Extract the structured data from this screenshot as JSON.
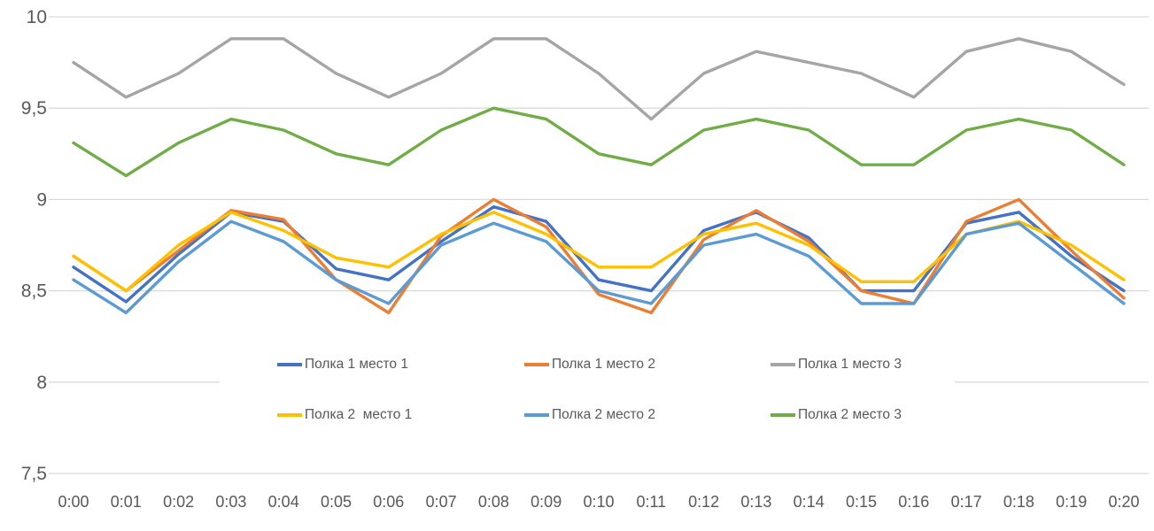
{
  "chart_data": {
    "type": "line",
    "title": "",
    "xlabel": "",
    "ylabel": "",
    "grid": true,
    "legend_position": "inside-bottom-two-rows",
    "ylim": [
      7.5,
      10
    ],
    "y_tick_values": [
      10,
      9.5,
      9,
      8.5,
      8,
      7.5
    ],
    "y_tick_labels": [
      "10",
      "9,5",
      "9",
      "8,5",
      "8",
      "7,5"
    ],
    "categories": [
      "0:00",
      "0:01",
      "0:02",
      "0:03",
      "0:04",
      "0:05",
      "0:06",
      "0:07",
      "0:08",
      "0:09",
      "0:10",
      "0:11",
      "0:12",
      "0:13",
      "0:14",
      "0:15",
      "0:16",
      "0:17",
      "0:18",
      "0:19",
      "0:20"
    ],
    "series": [
      {
        "name": "Полка 1 место 1",
        "color": "#4472C4",
        "values": [
          8.63,
          8.44,
          8.7,
          8.93,
          8.88,
          8.62,
          8.56,
          8.77,
          8.96,
          8.88,
          8.56,
          8.5,
          8.83,
          8.93,
          8.79,
          8.5,
          8.5,
          8.87,
          8.93,
          8.69,
          8.5
        ]
      },
      {
        "name": "Полка 1 место 2",
        "color": "#ED7D31",
        "values": [
          8.69,
          8.5,
          8.72,
          8.94,
          8.89,
          8.56,
          8.38,
          8.8,
          9.0,
          8.85,
          8.48,
          8.38,
          8.78,
          8.94,
          8.77,
          8.5,
          8.43,
          8.88,
          9.0,
          8.72,
          8.46
        ]
      },
      {
        "name": "Полка 1 место 3",
        "color": "#A5A5A5",
        "values": [
          9.75,
          9.56,
          9.69,
          9.88,
          9.88,
          9.69,
          9.56,
          9.69,
          9.88,
          9.88,
          9.69,
          9.44,
          9.69,
          9.81,
          9.75,
          9.69,
          9.56,
          9.81,
          9.88,
          9.81,
          9.63
        ]
      },
      {
        "name": "Полка 2  место 1",
        "color": "#FFC000",
        "values": [
          8.69,
          8.5,
          8.75,
          8.93,
          8.83,
          8.68,
          8.63,
          8.81,
          8.93,
          8.81,
          8.63,
          8.63,
          8.81,
          8.87,
          8.75,
          8.55,
          8.55,
          8.81,
          8.88,
          8.75,
          8.56
        ]
      },
      {
        "name": "Полка 2 место 2",
        "color": "#5B9BD5",
        "values": [
          8.56,
          8.38,
          8.66,
          8.88,
          8.77,
          8.56,
          8.43,
          8.75,
          8.87,
          8.77,
          8.5,
          8.43,
          8.75,
          8.81,
          8.69,
          8.43,
          8.43,
          8.81,
          8.87,
          8.65,
          8.43
        ]
      },
      {
        "name": "Полка 2 место 3",
        "color": "#70AD47",
        "values": [
          9.31,
          9.13,
          9.31,
          9.44,
          9.38,
          9.25,
          9.19,
          9.38,
          9.5,
          9.44,
          9.25,
          9.19,
          9.38,
          9.44,
          9.38,
          9.19,
          9.19,
          9.38,
          9.44,
          9.38,
          9.19
        ]
      }
    ]
  },
  "colors": {
    "background": "#FFFFFF",
    "gridline": "#D9D9D9",
    "axis_text": "#595959"
  }
}
